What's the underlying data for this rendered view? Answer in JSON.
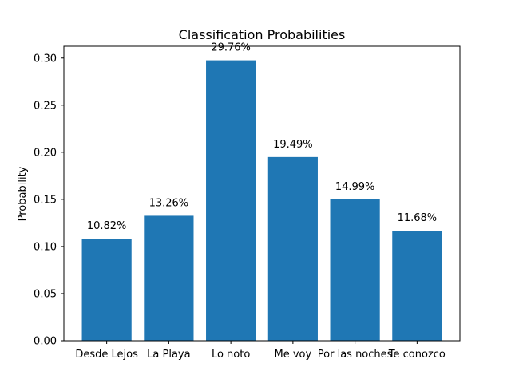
{
  "chart_data": {
    "type": "bar",
    "title": "Classification Probabilities",
    "xlabel": "",
    "ylabel": "Probability",
    "categories": [
      "Desde Lejos",
      "La Playa",
      "Lo noto",
      "Me voy",
      "Por las noches",
      "Te conozco"
    ],
    "values": [
      0.1082,
      0.1326,
      0.2976,
      0.1949,
      0.1499,
      0.1168
    ],
    "data_labels": [
      "10.82%",
      "13.26%",
      "29.76%",
      "19.49%",
      "14.99%",
      "11.68%"
    ],
    "ylim": [
      0,
      0.3125
    ],
    "yticks": [
      0.0,
      0.05,
      0.1,
      0.15,
      0.2,
      0.25,
      0.3
    ],
    "ytick_labels": [
      "0.00",
      "0.05",
      "0.10",
      "0.15",
      "0.20",
      "0.25",
      "0.30"
    ],
    "bar_color": "#1f77b4",
    "grid": false,
    "legend": "none"
  }
}
